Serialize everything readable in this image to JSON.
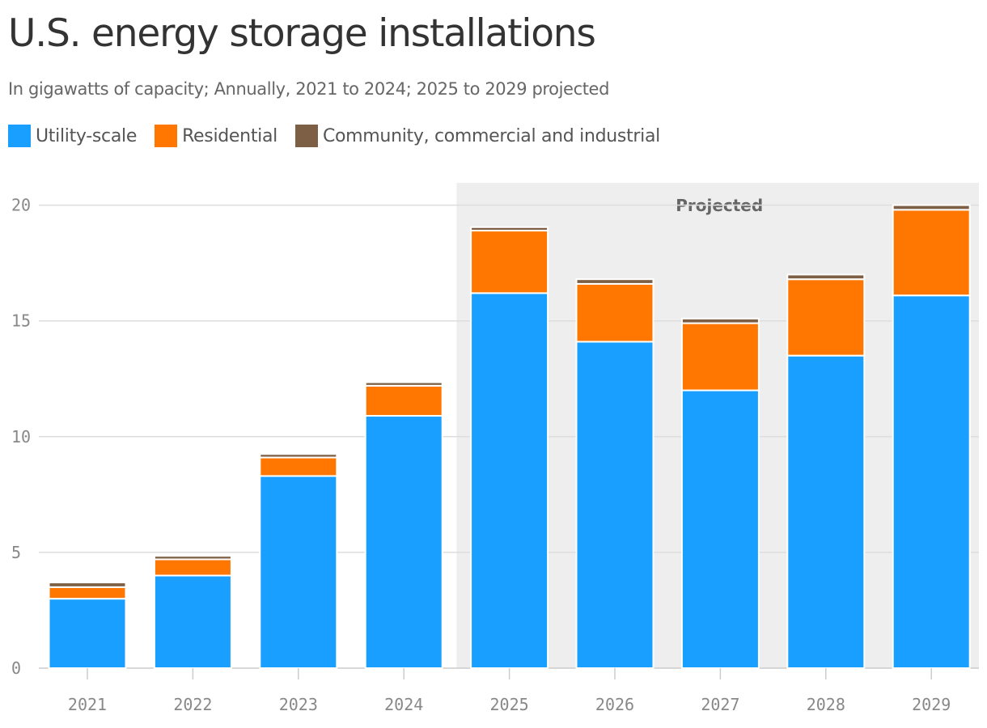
{
  "chart_data": {
    "type": "bar",
    "stacked": true,
    "title": "U.S. energy storage installations",
    "subtitle": "In gigawatts of capacity; Annually, 2021 to 2024; 2025 to 2029 projected",
    "categories": [
      "2021",
      "2022",
      "2023",
      "2024",
      "2025",
      "2026",
      "2027",
      "2028",
      "2029"
    ],
    "series": [
      {
        "name": "Utility-scale",
        "color": "#189FFF",
        "values": [
          3.0,
          4.0,
          8.3,
          10.9,
          16.2,
          14.1,
          12.0,
          13.5,
          16.1
        ]
      },
      {
        "name": "Residential",
        "color": "#FF7700",
        "values": [
          0.5,
          0.7,
          0.8,
          1.3,
          2.7,
          2.5,
          2.9,
          3.3,
          3.7
        ]
      },
      {
        "name": "Community, commercial and industrial",
        "color": "#7D5F45",
        "values": [
          0.2,
          0.15,
          0.15,
          0.15,
          0.15,
          0.2,
          0.2,
          0.2,
          0.2
        ]
      }
    ],
    "y_ticks": [
      "0",
      "5",
      "10",
      "15",
      "20"
    ],
    "ylim": [
      0,
      21
    ],
    "grid": true,
    "legend": "top-left",
    "projected": {
      "label": "Projected",
      "from": "2025",
      "to": "2029"
    }
  }
}
